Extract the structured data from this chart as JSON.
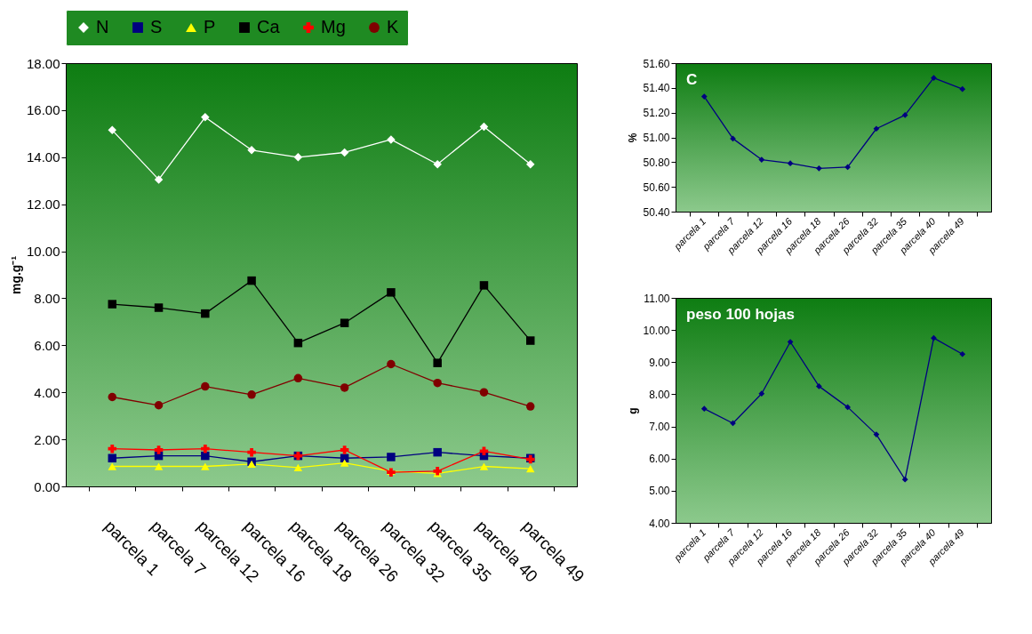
{
  "chart_data": [
    {
      "type": "line",
      "ylabel": "mg.g⁻¹",
      "legend": "top",
      "categories": [
        "parcela 1",
        "parcela 7",
        "parcela 12",
        "parcela 16",
        "parcela 18",
        "parcela 26",
        "parcela 32",
        "parcela 35",
        "parcela 40",
        "parcela 49"
      ],
      "series": [
        {
          "name": "N",
          "color": "#ffffff",
          "marker": "diamond",
          "values": [
            15.15,
            13.05,
            15.7,
            14.3,
            14.0,
            14.2,
            14.75,
            13.7,
            15.3,
            13.7
          ]
        },
        {
          "name": "S",
          "color": "#000080",
          "marker": "square",
          "values": [
            1.2,
            1.3,
            1.3,
            1.05,
            1.3,
            1.2,
            1.25,
            1.45,
            1.3,
            1.2
          ]
        },
        {
          "name": "P",
          "color": "#ffff00",
          "marker": "triangle",
          "values": [
            0.85,
            0.85,
            0.85,
            0.95,
            0.8,
            1.0,
            0.65,
            0.55,
            0.85,
            0.75
          ]
        },
        {
          "name": "Ca",
          "color": "#000000",
          "marker": "square",
          "values": [
            7.75,
            7.6,
            7.35,
            8.75,
            6.1,
            6.95,
            8.25,
            5.25,
            8.55,
            6.2
          ]
        },
        {
          "name": "Mg",
          "color": "#ff0000",
          "marker": "cross",
          "values": [
            1.6,
            1.55,
            1.6,
            1.45,
            1.3,
            1.55,
            0.6,
            0.65,
            1.5,
            1.15
          ]
        },
        {
          "name": "K",
          "color": "#800000",
          "marker": "circle",
          "values": [
            3.8,
            3.45,
            4.25,
            3.9,
            4.6,
            4.2,
            5.2,
            4.4,
            4.0,
            3.4
          ]
        }
      ],
      "ylim": [
        0,
        18
      ],
      "yticks": [
        {
          "value": 0,
          "label": "0.00"
        },
        {
          "value": 2,
          "label": "2.00"
        },
        {
          "value": 4,
          "label": "4.00"
        },
        {
          "value": 6,
          "label": "6.00"
        },
        {
          "value": 8,
          "label": "8.00"
        },
        {
          "value": 10,
          "label": "10.00"
        },
        {
          "value": 12,
          "label": "12.00"
        },
        {
          "value": 14,
          "label": "14.00"
        },
        {
          "value": 16,
          "label": "16.00"
        },
        {
          "value": 18,
          "label": "18.00"
        }
      ]
    },
    {
      "type": "line",
      "title": "C",
      "ylabel": "%",
      "categories": [
        "parcela 1",
        "parcela 7",
        "parcela 12",
        "parcela 16",
        "parcela 18",
        "parcela 26",
        "parcela 32",
        "parcela 35",
        "parcela 40",
        "parcela 49"
      ],
      "series": [
        {
          "color": "#000080",
          "marker": "diamond",
          "values": [
            51.33,
            50.99,
            50.82,
            50.79,
            50.75,
            50.76,
            51.07,
            51.18,
            51.48,
            51.39
          ]
        }
      ],
      "ylim": [
        50.4,
        51.6
      ],
      "yticks": [
        {
          "value": 50.4,
          "label": "50.40"
        },
        {
          "value": 50.6,
          "label": "50.60"
        },
        {
          "value": 50.8,
          "label": "50.80"
        },
        {
          "value": 51.0,
          "label": "51.00"
        },
        {
          "value": 51.2,
          "label": "51.20"
        },
        {
          "value": 51.4,
          "label": "51.40"
        },
        {
          "value": 51.6,
          "label": "51.60"
        }
      ]
    },
    {
      "type": "line",
      "title": "peso 100 hojas",
      "ylabel": "g",
      "categories": [
        "parcela 1",
        "parcela 7",
        "parcela 12",
        "parcela 16",
        "parcela 18",
        "parcela 26",
        "parcela 32",
        "parcela 35",
        "parcela 40",
        "parcela 49"
      ],
      "series": [
        {
          "color": "#000080",
          "marker": "diamond",
          "values": [
            7.55,
            7.1,
            8.02,
            9.63,
            8.25,
            7.6,
            6.75,
            5.35,
            9.75,
            9.25
          ]
        }
      ],
      "ylim": [
        4,
        11
      ],
      "yticks": [
        {
          "value": 4,
          "label": "4.00"
        },
        {
          "value": 5,
          "label": "5.00"
        },
        {
          "value": 6,
          "label": "6.00"
        },
        {
          "value": 7,
          "label": "7.00"
        },
        {
          "value": 8,
          "label": "8.00"
        },
        {
          "value": 9,
          "label": "9.00"
        },
        {
          "value": 10,
          "label": "10.00"
        },
        {
          "value": 11,
          "label": "11.00"
        }
      ]
    }
  ]
}
